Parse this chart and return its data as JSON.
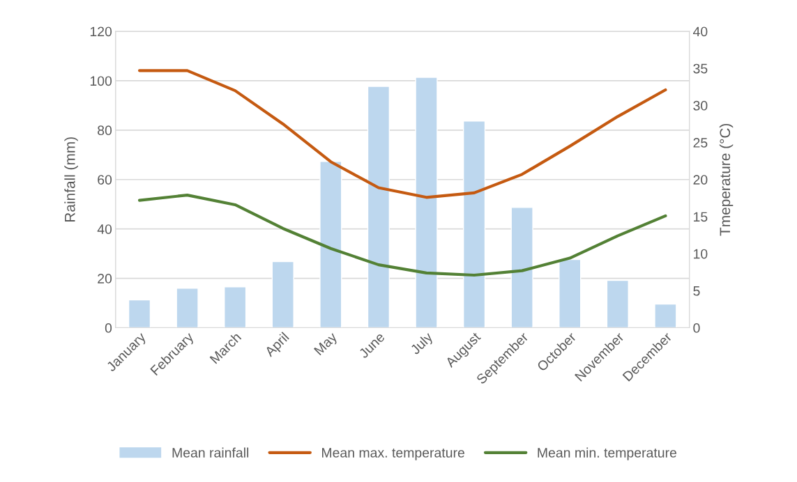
{
  "chart_data": {
    "type": "bar",
    "categories": [
      "January",
      "February",
      "March",
      "April",
      "May",
      "June",
      "July",
      "August",
      "September",
      "October",
      "November",
      "December"
    ],
    "series": [
      {
        "name": "Mean rainfall",
        "color": "#bdd7ee",
        "values": [
          11.3,
          16,
          16.6,
          26.8,
          67.3,
          97.7,
          101.4,
          83.7,
          48.7,
          27.6,
          19.2,
          9.6
        ]
      },
      {
        "name": "Mean max. temperature",
        "type": "line",
        "axis": "y2",
        "color": "#c55a11",
        "values": [
          34.7,
          34.7,
          32.0,
          27.5,
          22.4,
          18.9,
          17.6,
          18.2,
          20.7,
          24.5,
          28.5,
          32.1
        ]
      },
      {
        "name": "Mean min. temperature",
        "type": "line",
        "axis": "y2",
        "color": "#538135",
        "values": [
          17.2,
          17.9,
          16.6,
          13.4,
          10.7,
          8.5,
          7.4,
          7.1,
          7.7,
          9.4,
          12.4,
          15.1
        ]
      }
    ],
    "ylabel": "Rainfall (mm)",
    "y2label": "Tmeperature (°C)",
    "ylim": [
      0,
      120
    ],
    "yticks": [
      0,
      20,
      40,
      60,
      80,
      100,
      120
    ],
    "y2lim": [
      0,
      40
    ],
    "y2ticks": [
      0,
      5,
      10,
      15,
      20,
      25,
      30,
      35,
      40
    ],
    "grid": "y",
    "legend": "bottom",
    "marker": "none",
    "line_style": "solid"
  }
}
